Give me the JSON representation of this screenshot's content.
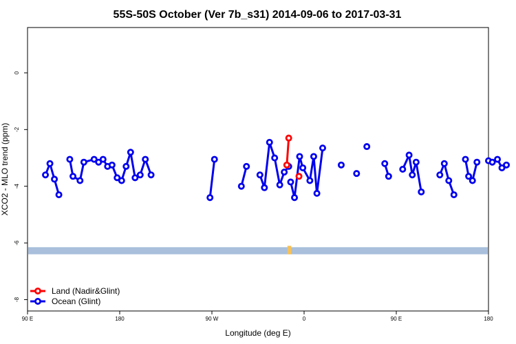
{
  "chart_data": {
    "type": "line",
    "title": "55S-50S October (Ver 7b_s31)   2014-09-06 to 2017-03-31",
    "xlabel": "Longitude (deg E)",
    "ylabel": "XCO2 - MLO trend (ppm)",
    "xlim": [
      90,
      450
    ],
    "ylim": [
      -8.4,
      1.6
    ],
    "x_ticks": [
      {
        "value": 90,
        "label": "90 E"
      },
      {
        "value": 180,
        "label": "180"
      },
      {
        "value": 270,
        "label": "90 W"
      },
      {
        "value": 360,
        "label": "0"
      },
      {
        "value": 450,
        "label": "90 E"
      },
      {
        "value": 540,
        "label": "180"
      }
    ],
    "y_ticks": [
      {
        "value": 0,
        "label": "0"
      },
      {
        "value": -2,
        "label": "-2"
      },
      {
        "value": -4,
        "label": "-4"
      },
      {
        "value": -6,
        "label": "-6"
      },
      {
        "value": -8,
        "label": "-8"
      }
    ],
    "legend_position": "bottom-left",
    "land_band": {
      "y_from": -6.15,
      "y_to": -6.4,
      "color": "#a9bfdc",
      "spot_color": "#f5c15a",
      "spot_x": [
        293,
        296
      ]
    },
    "series": [
      {
        "name": "Land (Nadir&Glint)",
        "color": "#ff0000",
        "segments": [
          [
            [
              292.5,
              -3.25
            ],
            [
              294,
              -2.3
            ]
          ],
          [
            [
              302,
              -3.65
            ]
          ]
        ]
      },
      {
        "name": "Ocean (Glint)",
        "color": "#0000ee",
        "segments": [
          [
            [
              104,
              -3.6
            ],
            [
              107.5,
              -3.2
            ],
            [
              111,
              -3.75
            ],
            [
              114.5,
              -4.3
            ]
          ],
          [
            [
              123,
              -3.05
            ],
            [
              125.5,
              -3.65
            ],
            [
              131,
              -3.8
            ],
            [
              134,
              -3.15
            ],
            [
              142,
              -3.05
            ],
            [
              145.5,
              -3.15
            ],
            [
              149,
              -3.05
            ],
            [
              152.5,
              -3.3
            ],
            [
              156,
              -3.25
            ],
            [
              160,
              -3.7
            ],
            [
              163.5,
              -3.8
            ],
            [
              167,
              -3.3
            ],
            [
              170.5,
              -2.8
            ],
            [
              174,
              -3.7
            ],
            [
              178,
              -3.6
            ],
            [
              182,
              -3.05
            ],
            [
              186.5,
              -3.6
            ]
          ],
          [
            [
              232.5,
              -4.4
            ],
            [
              236,
              -3.05
            ]
          ],
          [
            [
              257,
              -4.0
            ],
            [
              261,
              -3.3
            ]
          ],
          [
            [
              271.5,
              -3.6
            ],
            [
              275,
              -4.05
            ],
            [
              279,
              -2.45
            ],
            [
              283,
              -3.0
            ],
            [
              287,
              -3.95
            ],
            [
              290.5,
              -3.5
            ],
            [
              294,
              -3.3
            ]
          ],
          [
            [
              295.5,
              -3.85
            ],
            [
              298.5,
              -4.4
            ],
            [
              302.5,
              -2.95
            ],
            [
              305,
              -3.35
            ],
            [
              310.5,
              -3.8
            ],
            [
              313.5,
              -2.95
            ],
            [
              316,
              -4.25
            ],
            [
              320.5,
              -2.65
            ]
          ],
          [
            [
              335,
              -3.25
            ]
          ],
          [
            [
              347,
              -3.55
            ]
          ],
          [
            [
              355,
              -2.6
            ]
          ],
          [
            [
              369,
              -3.2
            ],
            [
              372,
              -3.65
            ]
          ],
          [
            [
              383,
              -3.4
            ],
            [
              388,
              -2.9
            ],
            [
              390.5,
              -3.6
            ],
            [
              393.5,
              -3.15
            ],
            [
              397.5,
              -4.2
            ]
          ],
          [
            [
              412,
              -3.6
            ],
            [
              415.5,
              -3.2
            ],
            [
              419,
              -3.8
            ],
            [
              423,
              -4.3
            ]
          ],
          [
            [
              432,
              -3.05
            ],
            [
              434.5,
              -3.65
            ],
            [
              437.5,
              -3.8
            ],
            [
              441,
              -3.15
            ]
          ],
          [
            [
              450,
              -3.1
            ],
            [
              453,
              -3.15
            ],
            [
              457,
              -3.05
            ],
            [
              460.5,
              -3.35
            ],
            [
              464,
              -3.25
            ]
          ]
        ]
      }
    ]
  }
}
